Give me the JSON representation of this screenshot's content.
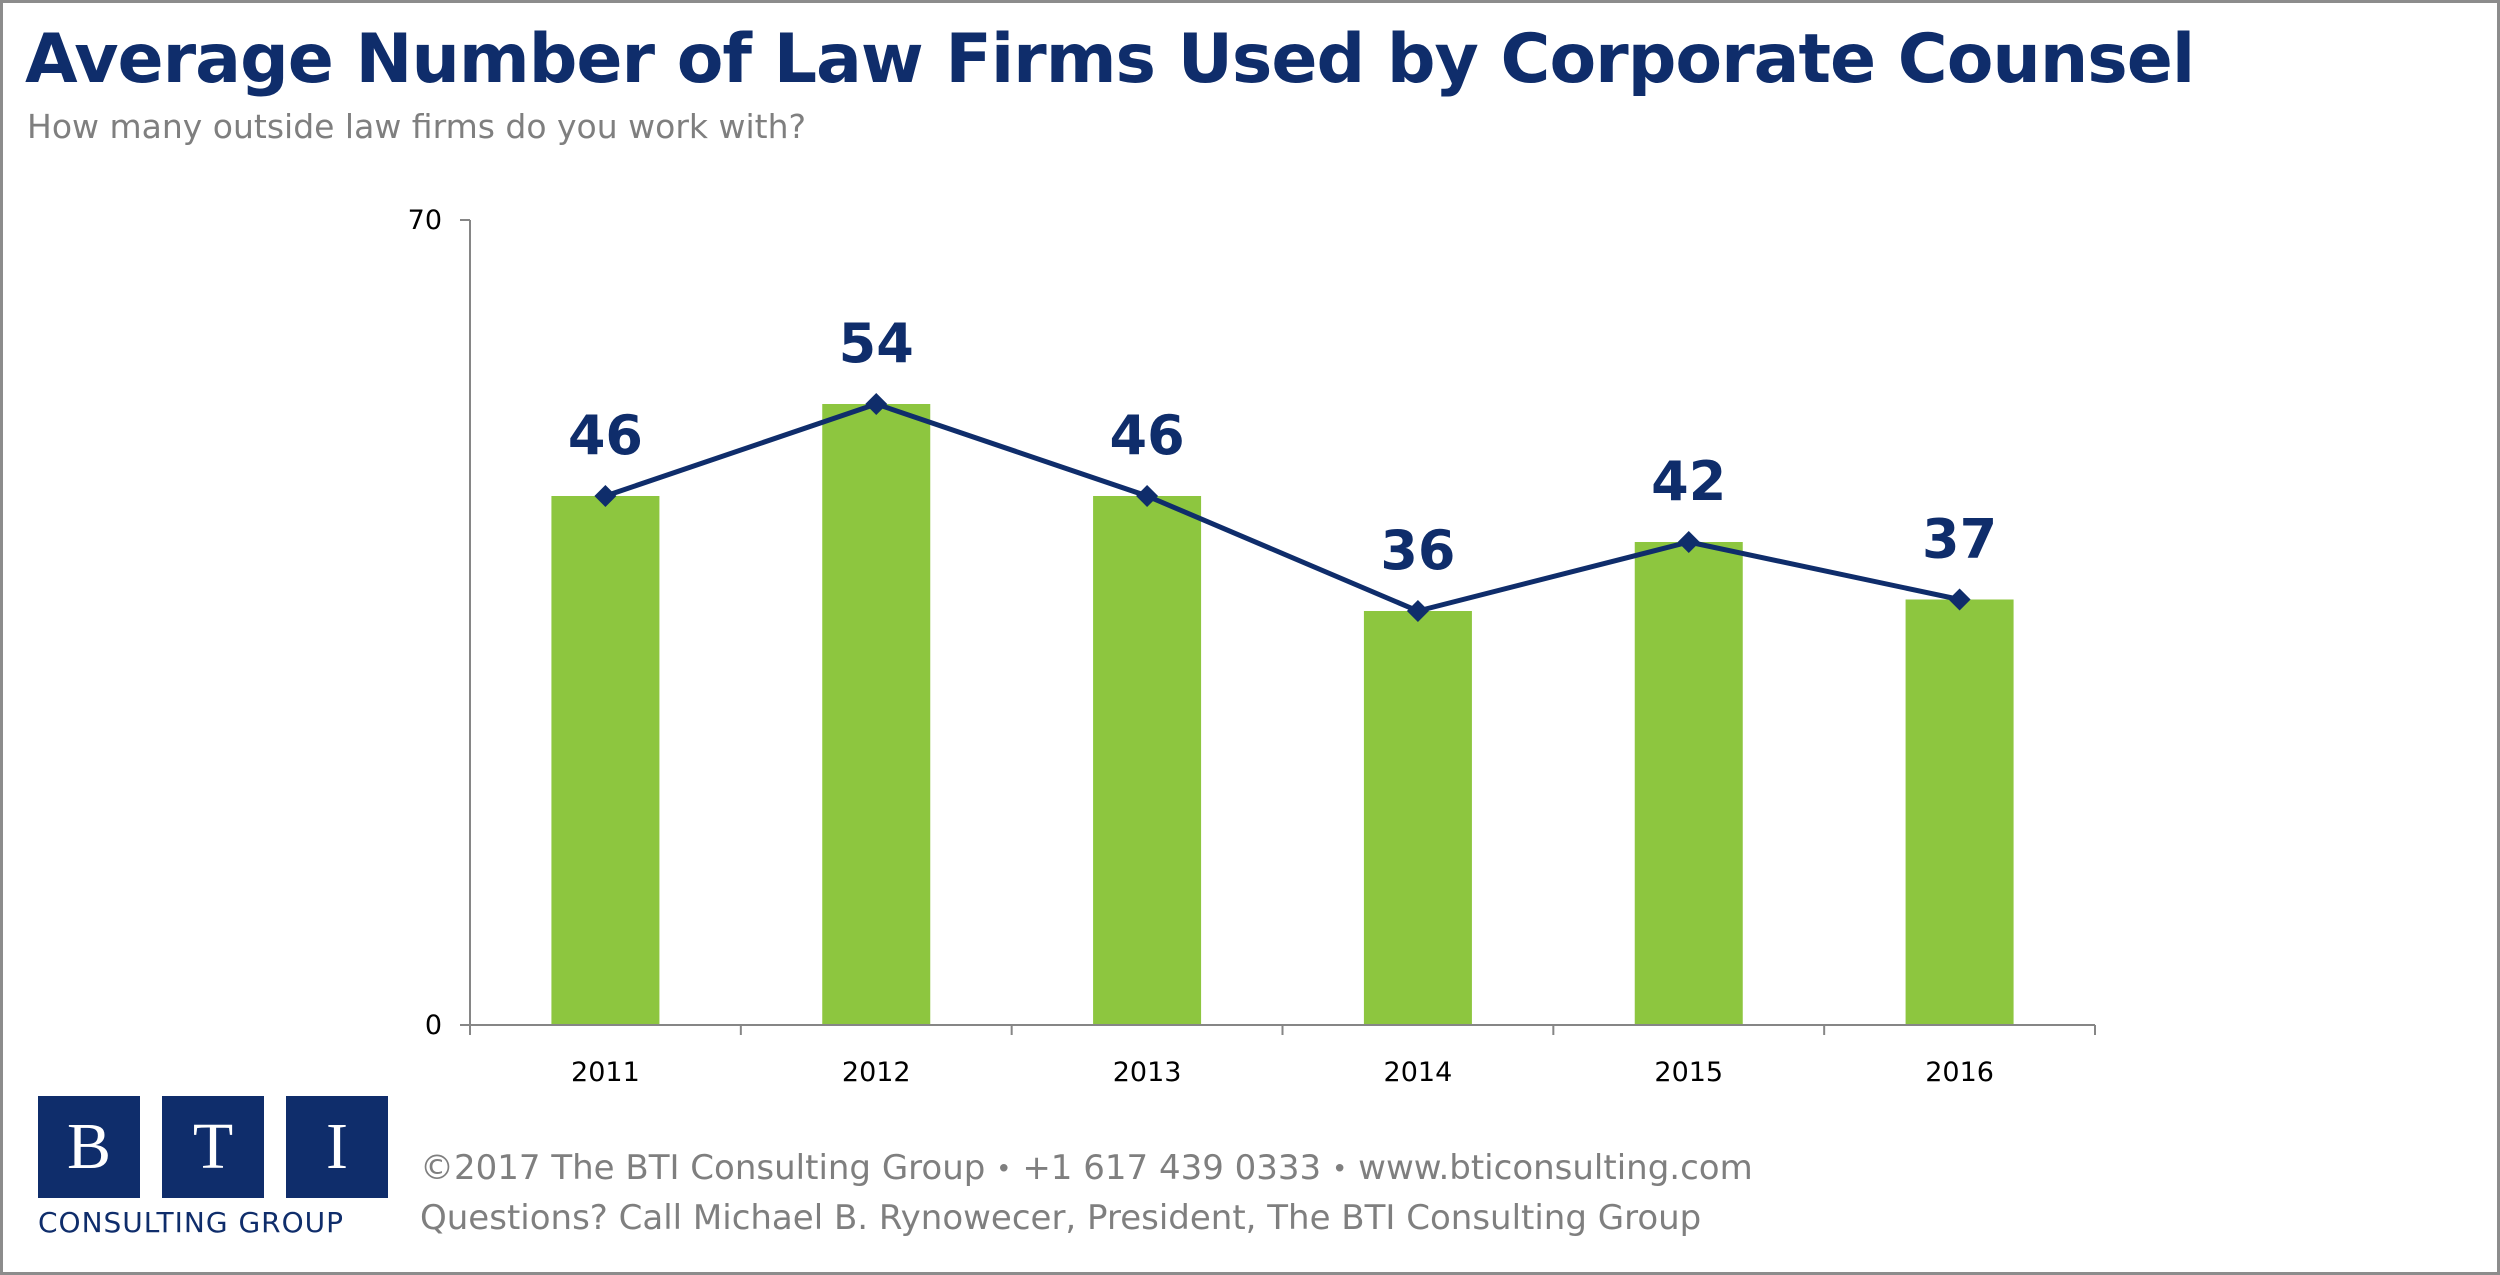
{
  "header": {
    "title": "Average Number of Law Firms Used by Corporate Counsel",
    "subtitle": "How many outside law firms do you work with?"
  },
  "chart_data": {
    "type": "bar",
    "categories": [
      "2011",
      "2012",
      "2013",
      "2014",
      "2015",
      "2016"
    ],
    "values": [
      46,
      54,
      46,
      36,
      42,
      37
    ],
    "series": [
      {
        "type": "bar",
        "values": [
          46,
          54,
          46,
          36,
          42,
          37
        ],
        "color": "#8dc63f"
      },
      {
        "type": "line",
        "marker": "diamond",
        "values": [
          46,
          54,
          46,
          36,
          42,
          37
        ],
        "color": "#0f2d6b"
      }
    ],
    "y_tick_labels": [
      "0",
      "70"
    ],
    "ylim": [
      0,
      70
    ],
    "grid": false,
    "title": "",
    "xlabel": "",
    "ylabel": ""
  },
  "logo": {
    "letters": [
      "B",
      "T",
      "I"
    ],
    "tagline": "CONSULTING GROUP"
  },
  "footer": {
    "copyright": "©2017 The BTI Consulting Group",
    "phone": "+1 617 439 0333",
    "website": "www.bticonsulting.com",
    "separator": "•",
    "contact": "Questions? Call Michael B. Rynowecer, President, The BTI Consulting Group"
  },
  "colors": {
    "navy": "#0f2d6b",
    "green": "#8dc63f",
    "gray": "#7f7f7f"
  }
}
